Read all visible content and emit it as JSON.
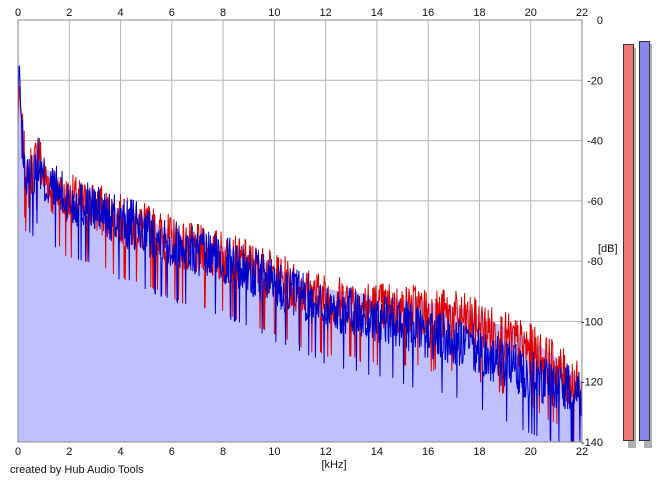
{
  "credit_text": "created by Hub Audio Tools",
  "chart_data": {
    "type": "area",
    "xlabel": "[kHz]",
    "ylabel": "[dB]",
    "xlim": [
      0,
      22
    ],
    "ylim": [
      -140,
      0
    ],
    "x_ticks": [
      "0",
      "2",
      "4",
      "6",
      "8",
      "10",
      "12",
      "14",
      "16",
      "18",
      "20",
      "22"
    ],
    "y_ticks": [
      "0",
      "-20",
      "-40",
      "-60",
      "-80",
      "-100",
      "-120",
      "-140"
    ],
    "grid": true,
    "colors": {
      "left_line": "#e00000",
      "right_line": "#0000cc",
      "fill": "#c0c0ff",
      "left_meter": "#ee7777",
      "right_meter": "#8888ee"
    },
    "series": [
      {
        "x": [
          0,
          0.05,
          0.1,
          0.2,
          0.3,
          0.4,
          0.5,
          0.6,
          0.7,
          0.8,
          0.9,
          1.0,
          1.2,
          1.4,
          1.6,
          1.8,
          2.0,
          2.5,
          3.0,
          3.5,
          4.0,
          4.5,
          5.0,
          5.5,
          6.0,
          6.5,
          7.0,
          7.5,
          8.0,
          8.5,
          9.0,
          9.5,
          10.0,
          10.5,
          11.0,
          11.5,
          12.0,
          12.5,
          13.0,
          13.5,
          14.0,
          14.5,
          15.0,
          15.5,
          16.0,
          16.5,
          17.0,
          17.5,
          18.0,
          18.5,
          19.0,
          19.5,
          20.0,
          20.5,
          21.0,
          21.5,
          22.0
        ],
        "values": [
          -35,
          -20,
          -30,
          -38,
          -48,
          -52,
          -46,
          -48,
          -42,
          -38,
          -45,
          -48,
          -50,
          -55,
          -52,
          -57,
          -56,
          -58,
          -59,
          -61,
          -63,
          -65,
          -66,
          -68,
          -70,
          -72,
          -73,
          -74,
          -75,
          -77,
          -78,
          -80,
          -82,
          -84,
          -86,
          -88,
          -89,
          -90,
          -90,
          -91,
          -92,
          -92,
          -93,
          -92,
          -94,
          -94,
          -95,
          -96,
          -98,
          -100,
          -102,
          -104,
          -106,
          -109,
          -112,
          -116,
          -120
        ]
      },
      {
        "x": [
          0,
          0.05,
          0.1,
          0.2,
          0.3,
          0.4,
          0.5,
          0.6,
          0.7,
          0.8,
          0.9,
          1.0,
          1.2,
          1.4,
          1.6,
          1.8,
          2.0,
          2.5,
          3.0,
          3.5,
          4.0,
          4.5,
          5.0,
          5.5,
          6.0,
          6.5,
          7.0,
          7.5,
          8.0,
          8.5,
          9.0,
          9.5,
          10.0,
          10.5,
          11.0,
          11.5,
          12.0,
          12.5,
          13.0,
          13.5,
          14.0,
          14.5,
          15.0,
          15.5,
          16.0,
          16.5,
          17.0,
          17.5,
          18.0,
          18.5,
          19.0,
          19.5,
          20.0,
          20.5,
          21.0,
          21.5,
          22.0
        ],
        "values": [
          -30,
          -12,
          -28,
          -40,
          -49,
          -51,
          -47,
          -50,
          -46,
          -44,
          -48,
          -50,
          -52,
          -53,
          -54,
          -56,
          -57,
          -58,
          -59,
          -62,
          -64,
          -65,
          -67,
          -69,
          -71,
          -72,
          -74,
          -75,
          -76,
          -78,
          -80,
          -82,
          -84,
          -86,
          -88,
          -90,
          -92,
          -93,
          -94,
          -95,
          -96,
          -97,
          -98,
          -100,
          -101,
          -102,
          -103,
          -105,
          -107,
          -109,
          -111,
          -113,
          -115,
          -116,
          -118,
          -119,
          -120
        ]
      }
    ],
    "meters": {
      "left_db": -8,
      "right_db": -7,
      "range": [
        -140,
        0
      ]
    }
  }
}
